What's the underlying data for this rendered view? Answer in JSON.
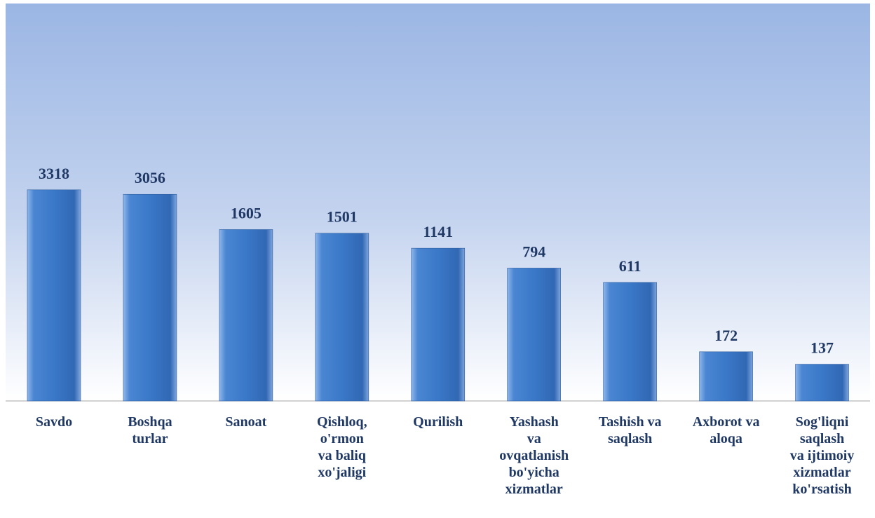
{
  "chart_data": {
    "type": "bar",
    "log_scale": true,
    "ylim": [
      70,
      100000
    ],
    "color": "#3a78c8",
    "categories": [
      "Savdo",
      "Boshqa\nturlar",
      "Sanoat",
      "Qishloq,\no'rmon\nva baliq\nxo'jaligi",
      "Qurilish",
      "Yashash\nva\novqatlanish\nbo'yicha\nxizmatlar",
      "Tashish va\nsaqlash",
      "Axborot va\naloqa",
      "Sog'liqni\nsaqlash\nva ijtimoiy\nxizmatlar\nko'rsatish"
    ],
    "values": [
      3318,
      3056,
      1605,
      1501,
      1141,
      794,
      611,
      172,
      137
    ]
  }
}
